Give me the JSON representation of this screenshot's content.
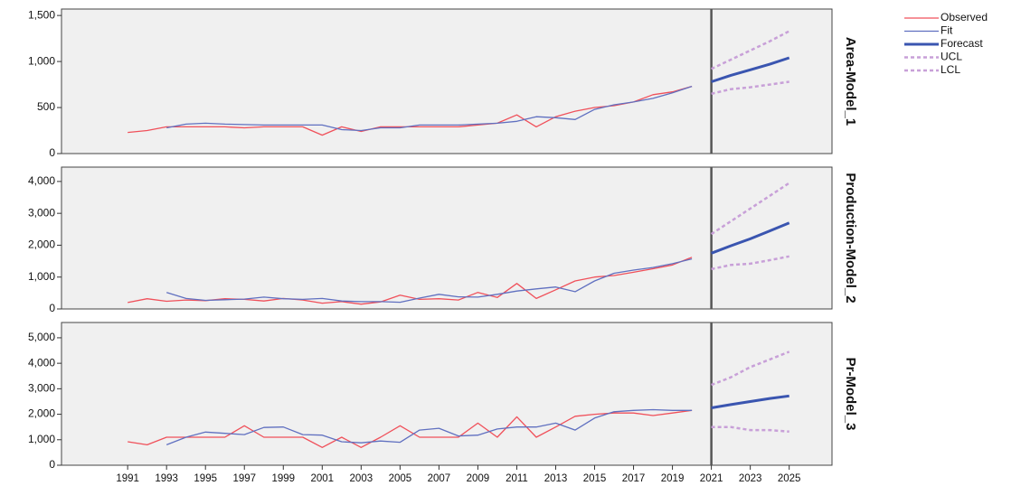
{
  "chart_data": [
    {
      "type": "line",
      "title": "Area-Model_1",
      "x": [
        1991,
        1992,
        1993,
        1994,
        1995,
        1996,
        1997,
        1998,
        1999,
        2000,
        2001,
        2002,
        2003,
        2004,
        2005,
        2006,
        2007,
        2008,
        2009,
        2010,
        2011,
        2012,
        2013,
        2014,
        2015,
        2016,
        2017,
        2018,
        2019,
        2020,
        2021,
        2022,
        2023,
        2024,
        2025
      ],
      "xlim": [
        1987.6,
        2027.2
      ],
      "vline": 2021,
      "ylim": [
        0,
        1570
      ],
      "yticks": [
        0,
        500,
        {
          "value": 1000,
          "label": "1,000"
        },
        {
          "value": 1500,
          "label": "1,500"
        }
      ],
      "legend": "upper right",
      "series": [
        {
          "name": "Observed",
          "color": "#f0505a",
          "style": "solid",
          "values": [
            230,
            250,
            290,
            290,
            290,
            290,
            280,
            290,
            290,
            290,
            200,
            290,
            240,
            290,
            290,
            290,
            290,
            290,
            310,
            330,
            420,
            290,
            400,
            460,
            500,
            520,
            560,
            640,
            670,
            730,
            null,
            null,
            null,
            null,
            null
          ]
        },
        {
          "name": "Fit",
          "color": "#6070c0",
          "style": "solid",
          "values": [
            null,
            null,
            280,
            320,
            330,
            320,
            315,
            310,
            310,
            310,
            310,
            260,
            250,
            280,
            280,
            310,
            310,
            310,
            320,
            330,
            350,
            400,
            390,
            370,
            480,
            530,
            560,
            600,
            660,
            730,
            null,
            null,
            null,
            null,
            null
          ]
        },
        {
          "name": "Forecast",
          "color": "#3a55b0",
          "style": "thick",
          "values": [
            null,
            null,
            null,
            null,
            null,
            null,
            null,
            null,
            null,
            null,
            null,
            null,
            null,
            null,
            null,
            null,
            null,
            null,
            null,
            null,
            null,
            null,
            null,
            null,
            null,
            null,
            null,
            null,
            null,
            null,
            780,
            850,
            910,
            970,
            1040
          ]
        },
        {
          "name": "UCL",
          "color": "#c8a0d8",
          "style": "dashed",
          "values": [
            null,
            null,
            null,
            null,
            null,
            null,
            null,
            null,
            null,
            null,
            null,
            null,
            null,
            null,
            null,
            null,
            null,
            null,
            null,
            null,
            null,
            null,
            null,
            null,
            null,
            null,
            null,
            null,
            null,
            null,
            920,
            1020,
            1120,
            1220,
            1330
          ]
        },
        {
          "name": "LCL",
          "color": "#c8a0d8",
          "style": "dashed",
          "values": [
            null,
            null,
            null,
            null,
            null,
            null,
            null,
            null,
            null,
            null,
            null,
            null,
            null,
            null,
            null,
            null,
            null,
            null,
            null,
            null,
            null,
            null,
            null,
            null,
            null,
            null,
            null,
            null,
            null,
            null,
            650,
            700,
            720,
            750,
            780
          ]
        }
      ]
    },
    {
      "type": "line",
      "title": "Production-Model_2",
      "x": [
        1991,
        1992,
        1993,
        1994,
        1995,
        1996,
        1997,
        1998,
        1999,
        2000,
        2001,
        2002,
        2003,
        2004,
        2005,
        2006,
        2007,
        2008,
        2009,
        2010,
        2011,
        2012,
        2013,
        2014,
        2015,
        2016,
        2017,
        2018,
        2019,
        2020,
        2021,
        2022,
        2023,
        2024,
        2025
      ],
      "xlim": [
        1987.6,
        2027.2
      ],
      "vline": 2021,
      "ylim": [
        0,
        4450
      ],
      "yticks": [
        0,
        {
          "value": 1000,
          "label": "1,000"
        },
        {
          "value": 2000,
          "label": "2,000"
        },
        {
          "value": 3000,
          "label": "3,000"
        },
        {
          "value": 4000,
          "label": "4,000"
        }
      ],
      "series": [
        {
          "name": "Observed",
          "color": "#f0505a",
          "style": "solid",
          "values": [
            200,
            320,
            240,
            280,
            260,
            320,
            300,
            250,
            330,
            280,
            180,
            230,
            150,
            220,
            430,
            300,
            320,
            280,
            520,
            360,
            800,
            330,
            600,
            880,
            1000,
            1050,
            1150,
            1260,
            1380,
            1620,
            null,
            null,
            null,
            null,
            null
          ]
        },
        {
          "name": "Fit",
          "color": "#6070c0",
          "style": "solid",
          "values": [
            null,
            null,
            520,
            330,
            270,
            290,
            310,
            370,
            320,
            300,
            330,
            250,
            230,
            230,
            210,
            340,
            460,
            380,
            370,
            460,
            560,
            630,
            690,
            540,
            880,
            1120,
            1220,
            1300,
            1420,
            1570,
            null,
            null,
            null,
            null,
            null
          ]
        },
        {
          "name": "Forecast",
          "color": "#3a55b0",
          "style": "thick",
          "values": [
            null,
            null,
            null,
            null,
            null,
            null,
            null,
            null,
            null,
            null,
            null,
            null,
            null,
            null,
            null,
            null,
            null,
            null,
            null,
            null,
            null,
            null,
            null,
            null,
            null,
            null,
            null,
            null,
            null,
            null,
            1750,
            1980,
            2200,
            2450,
            2700
          ]
        },
        {
          "name": "UCL",
          "color": "#c8a0d8",
          "style": "dashed",
          "values": [
            null,
            null,
            null,
            null,
            null,
            null,
            null,
            null,
            null,
            null,
            null,
            null,
            null,
            null,
            null,
            null,
            null,
            null,
            null,
            null,
            null,
            null,
            null,
            null,
            null,
            null,
            null,
            null,
            null,
            null,
            2350,
            2750,
            3150,
            3550,
            3950
          ]
        },
        {
          "name": "LCL",
          "color": "#c8a0d8",
          "style": "dashed",
          "values": [
            null,
            null,
            null,
            null,
            null,
            null,
            null,
            null,
            null,
            null,
            null,
            null,
            null,
            null,
            null,
            null,
            null,
            null,
            null,
            null,
            null,
            null,
            null,
            null,
            null,
            null,
            null,
            null,
            null,
            null,
            1250,
            1380,
            1420,
            1530,
            1650
          ]
        }
      ]
    },
    {
      "type": "line",
      "title": "Pr-Model_3",
      "x": [
        1991,
        1992,
        1993,
        1994,
        1995,
        1996,
        1997,
        1998,
        1999,
        2000,
        2001,
        2002,
        2003,
        2004,
        2005,
        2006,
        2007,
        2008,
        2009,
        2010,
        2011,
        2012,
        2013,
        2014,
        2015,
        2016,
        2017,
        2018,
        2019,
        2020,
        2021,
        2022,
        2023,
        2024,
        2025
      ],
      "xlim": [
        1987.6,
        2027.2
      ],
      "vline": 2021,
      "xticks": [
        1991,
        1993,
        1995,
        1997,
        1999,
        2001,
        2003,
        2005,
        2007,
        2009,
        2011,
        2013,
        2015,
        2017,
        2019,
        2021,
        2023,
        2025
      ],
      "ylim": [
        0,
        5600
      ],
      "yticks": [
        0,
        {
          "value": 1000,
          "label": "1,000"
        },
        {
          "value": 2000,
          "label": "2,000"
        },
        {
          "value": 3000,
          "label": "3,000"
        },
        {
          "value": 4000,
          "label": "4,000"
        },
        {
          "value": 5000,
          "label": "5,000"
        }
      ],
      "series": [
        {
          "name": "Observed",
          "color": "#f0505a",
          "style": "solid",
          "values": [
            920,
            800,
            1100,
            1100,
            1100,
            1100,
            1550,
            1100,
            1100,
            1100,
            700,
            1100,
            700,
            1100,
            1550,
            1100,
            1100,
            1100,
            1650,
            1100,
            1900,
            1100,
            1500,
            1920,
            2000,
            2050,
            2050,
            1950,
            2050,
            2150,
            null,
            null,
            null,
            null,
            null
          ]
        },
        {
          "name": "Fit",
          "color": "#6070c0",
          "style": "solid",
          "values": [
            null,
            null,
            800,
            1100,
            1300,
            1250,
            1200,
            1480,
            1500,
            1200,
            1180,
            920,
            880,
            950,
            900,
            1380,
            1450,
            1150,
            1180,
            1420,
            1500,
            1500,
            1650,
            1380,
            1850,
            2100,
            2150,
            2180,
            2150,
            2150,
            null,
            null,
            null,
            null,
            null
          ]
        },
        {
          "name": "Forecast",
          "color": "#3a55b0",
          "style": "thick",
          "values": [
            null,
            null,
            null,
            null,
            null,
            null,
            null,
            null,
            null,
            null,
            null,
            null,
            null,
            null,
            null,
            null,
            null,
            null,
            null,
            null,
            null,
            null,
            null,
            null,
            null,
            null,
            null,
            null,
            null,
            null,
            2250,
            2380,
            2500,
            2620,
            2720
          ]
        },
        {
          "name": "UCL",
          "color": "#c8a0d8",
          "style": "dashed",
          "values": [
            null,
            null,
            null,
            null,
            null,
            null,
            null,
            null,
            null,
            null,
            null,
            null,
            null,
            null,
            null,
            null,
            null,
            null,
            null,
            null,
            null,
            null,
            null,
            null,
            null,
            null,
            null,
            null,
            null,
            null,
            3150,
            3450,
            3850,
            4150,
            4450
          ]
        },
        {
          "name": "LCL",
          "color": "#c8a0d8",
          "style": "dashed",
          "values": [
            null,
            null,
            null,
            null,
            null,
            null,
            null,
            null,
            null,
            null,
            null,
            null,
            null,
            null,
            null,
            null,
            null,
            null,
            null,
            null,
            null,
            null,
            null,
            null,
            null,
            null,
            null,
            null,
            null,
            null,
            1500,
            1500,
            1380,
            1380,
            1320
          ]
        }
      ]
    }
  ]
}
